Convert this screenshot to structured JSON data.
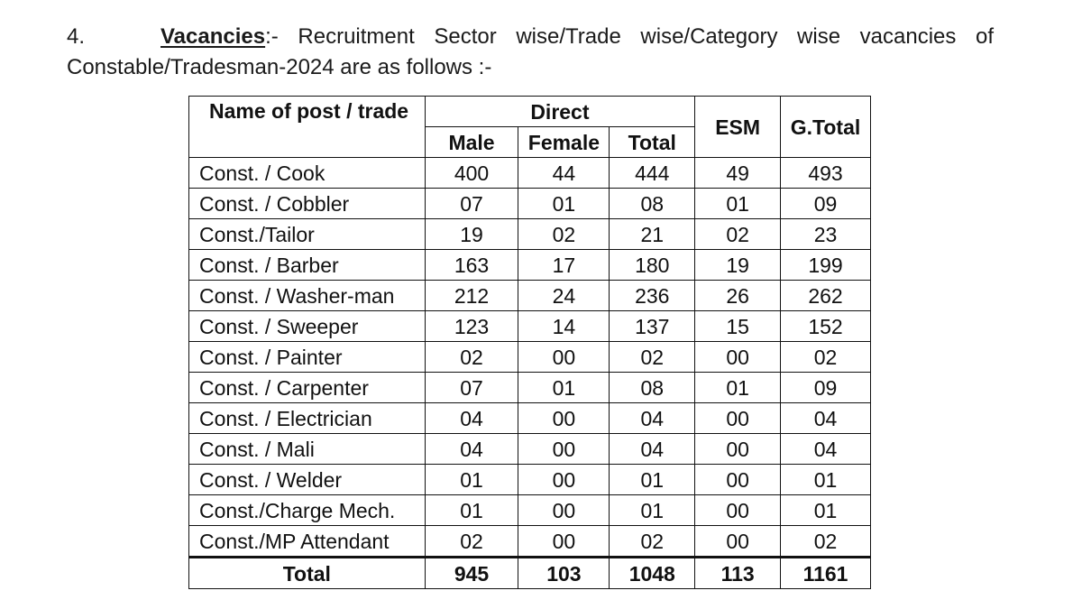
{
  "paragraph": {
    "number": "4.",
    "heading": "Vacancies",
    "heading_suffix": ":-",
    "line1_rest": "Recruitment Sector wise/Trade wise/Category wise vacancies of",
    "line2": "Constable/Tradesman-2024 are as follows :-"
  },
  "table": {
    "headers": {
      "name": "Name of post / trade",
      "direct": "Direct",
      "male": "Male",
      "female": "Female",
      "total": "Total",
      "esm": "ESM",
      "gtotal": "G.Total"
    },
    "rows": [
      {
        "name": "Const. / Cook",
        "male": "400",
        "female": "44",
        "total": "444",
        "esm": "49",
        "gtotal": "493"
      },
      {
        "name": "Const. / Cobbler",
        "male": "07",
        "female": "01",
        "total": "08",
        "esm": "01",
        "gtotal": "09"
      },
      {
        "name": "Const./Tailor",
        "male": "19",
        "female": "02",
        "total": "21",
        "esm": "02",
        "gtotal": "23"
      },
      {
        "name": "Const. / Barber",
        "male": "163",
        "female": "17",
        "total": "180",
        "esm": "19",
        "gtotal": "199"
      },
      {
        "name": "Const. / Washer-man",
        "male": "212",
        "female": "24",
        "total": "236",
        "esm": "26",
        "gtotal": "262"
      },
      {
        "name": "Const. / Sweeper",
        "male": "123",
        "female": "14",
        "total": "137",
        "esm": "15",
        "gtotal": "152"
      },
      {
        "name": "Const. / Painter",
        "male": "02",
        "female": "00",
        "total": "02",
        "esm": "00",
        "gtotal": "02"
      },
      {
        "name": "Const. / Carpenter",
        "male": "07",
        "female": "01",
        "total": "08",
        "esm": "01",
        "gtotal": "09"
      },
      {
        "name": "Const. / Electrician",
        "male": "04",
        "female": "00",
        "total": "04",
        "esm": "00",
        "gtotal": "04"
      },
      {
        "name": "Const. / Mali",
        "male": "04",
        "female": "00",
        "total": "04",
        "esm": "00",
        "gtotal": "04"
      },
      {
        "name": "Const. / Welder",
        "male": "01",
        "female": "00",
        "total": "01",
        "esm": "00",
        "gtotal": "01"
      },
      {
        "name": "Const./Charge Mech.",
        "male": "01",
        "female": "00",
        "total": "01",
        "esm": "00",
        "gtotal": "01"
      },
      {
        "name": "Const./MP Attendant",
        "male": "02",
        "female": "00",
        "total": "02",
        "esm": "00",
        "gtotal": "02"
      }
    ],
    "total_row": {
      "label": "Total",
      "male": "945",
      "female": "103",
      "total": "1048",
      "esm": "113",
      "gtotal": "1161"
    }
  }
}
